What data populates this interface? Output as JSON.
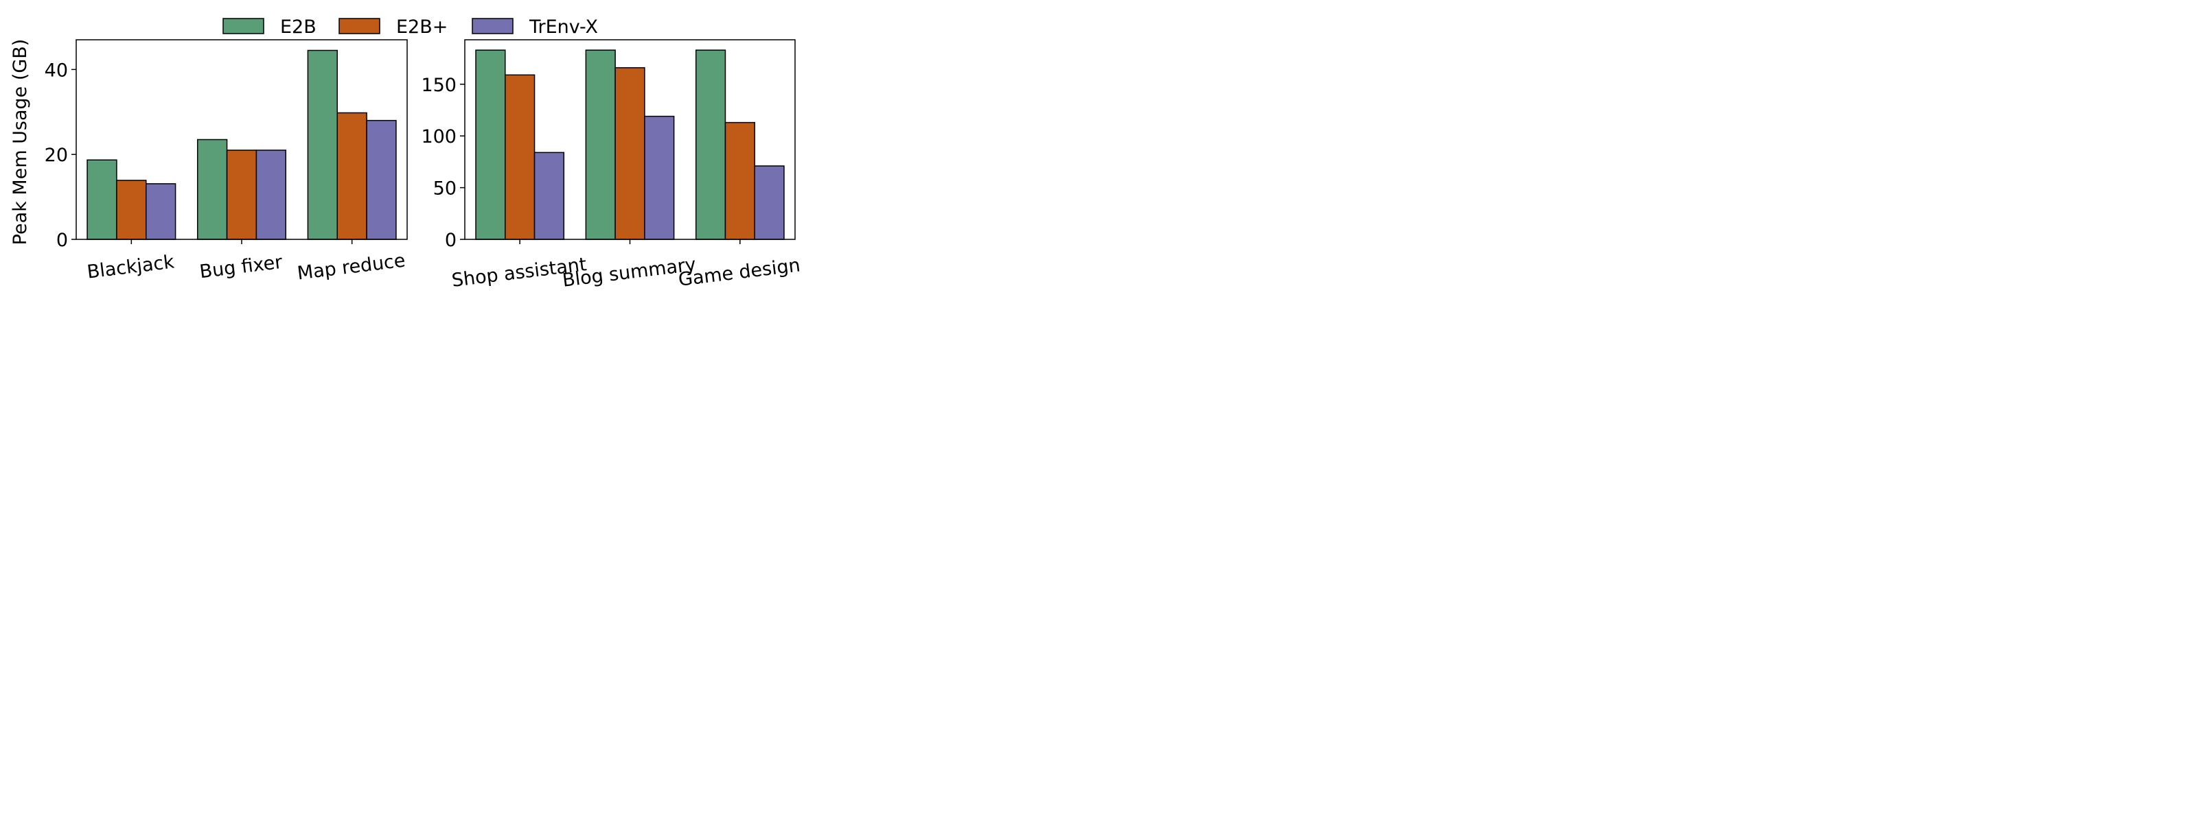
{
  "legend": {
    "placement": "top-center",
    "entries": [
      {
        "label": "E2B",
        "color": "#5a9e77"
      },
      {
        "label": "E2B+",
        "color": "#bf5b17"
      },
      {
        "label": "TrEnv-X",
        "color": "#7570b0"
      }
    ]
  },
  "chart_data": [
    {
      "type": "bar",
      "title": "",
      "xlabel": "",
      "ylabel": "Peak Mem Usage (GB)",
      "ylim": [
        0,
        47
      ],
      "yticks": [
        0,
        20,
        40
      ],
      "grid": false,
      "categories": [
        "Blackjack",
        "Bug fixer",
        "Map reduce"
      ],
      "series": [
        {
          "name": "E2B",
          "values": [
            18.7,
            23.5,
            44.5
          ]
        },
        {
          "name": "E2B+",
          "values": [
            13.9,
            21.0,
            29.8
          ]
        },
        {
          "name": "TrEnv-X",
          "values": [
            13.1,
            21.0,
            28.0
          ]
        }
      ]
    },
    {
      "type": "bar",
      "title": "",
      "xlabel": "",
      "ylabel": "",
      "ylim": [
        0,
        193
      ],
      "yticks": [
        0,
        50,
        100,
        150
      ],
      "grid": false,
      "categories": [
        "Shop assistant",
        "Blog summary",
        "Game design"
      ],
      "series": [
        {
          "name": "E2B",
          "values": [
            183,
            183,
            183
          ]
        },
        {
          "name": "E2B+",
          "values": [
            159,
            166,
            113
          ]
        },
        {
          "name": "TrEnv-X",
          "values": [
            84,
            119,
            71
          ]
        }
      ]
    }
  ]
}
